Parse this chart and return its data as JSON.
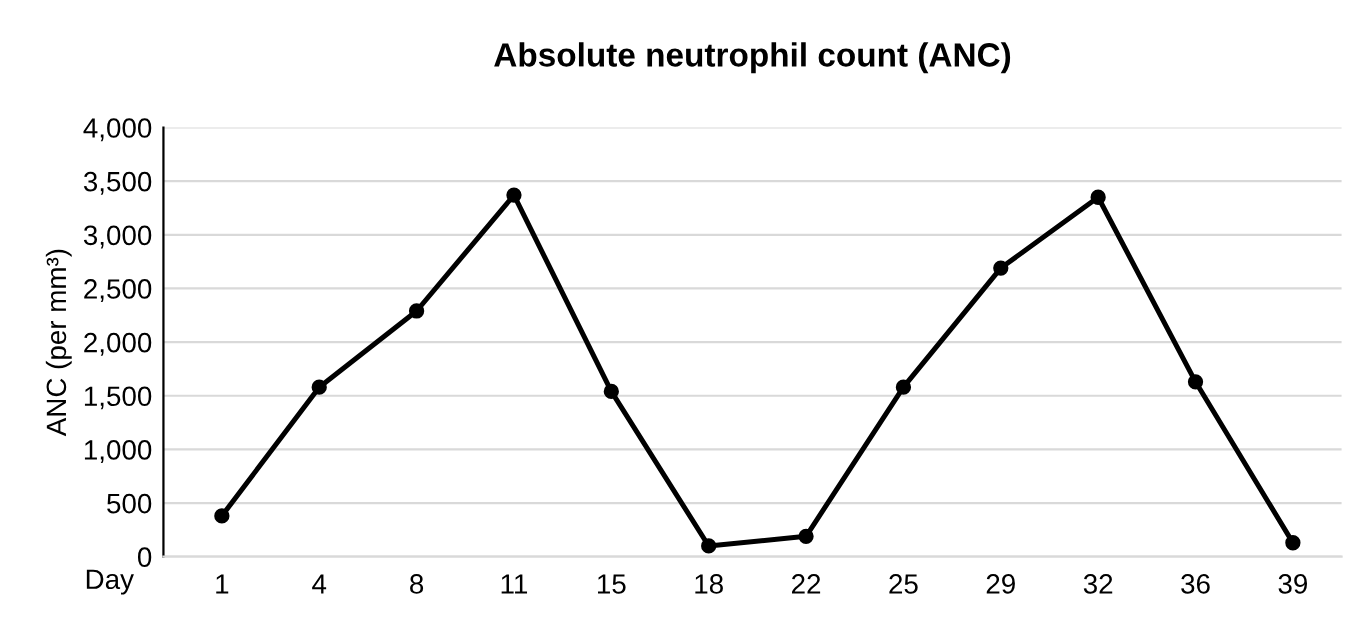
{
  "chart_data": {
    "type": "line",
    "title": "Absolute neutrophil count (ANC)",
    "xlabel": "Day",
    "ylabel": "ANC (per mm³)",
    "categories": [
      "1",
      "4",
      "8",
      "11",
      "15",
      "18",
      "22",
      "25",
      "29",
      "32",
      "36",
      "39"
    ],
    "series": [
      {
        "color": "#000000",
        "values": [
          380,
          1580,
          2290,
          3370,
          1540,
          100,
          190,
          1580,
          2690,
          3350,
          1630,
          130
        ]
      }
    ],
    "ylim": [
      0,
      4000
    ],
    "yticks": [
      0,
      500,
      {
        "value": 1000,
        "label": "1,000"
      },
      {
        "value": 1500,
        "label": "1,500"
      },
      {
        "value": 2000,
        "label": "2,000"
      },
      {
        "value": 2500,
        "label": "2,500"
      },
      {
        "value": 3000,
        "label": "3,000"
      },
      {
        "value": 3500,
        "label": "3,500"
      },
      {
        "value": 4000,
        "label": "4,000"
      }
    ],
    "grid": "y",
    "marker": "circle",
    "line_style": "solid",
    "legend": false
  }
}
